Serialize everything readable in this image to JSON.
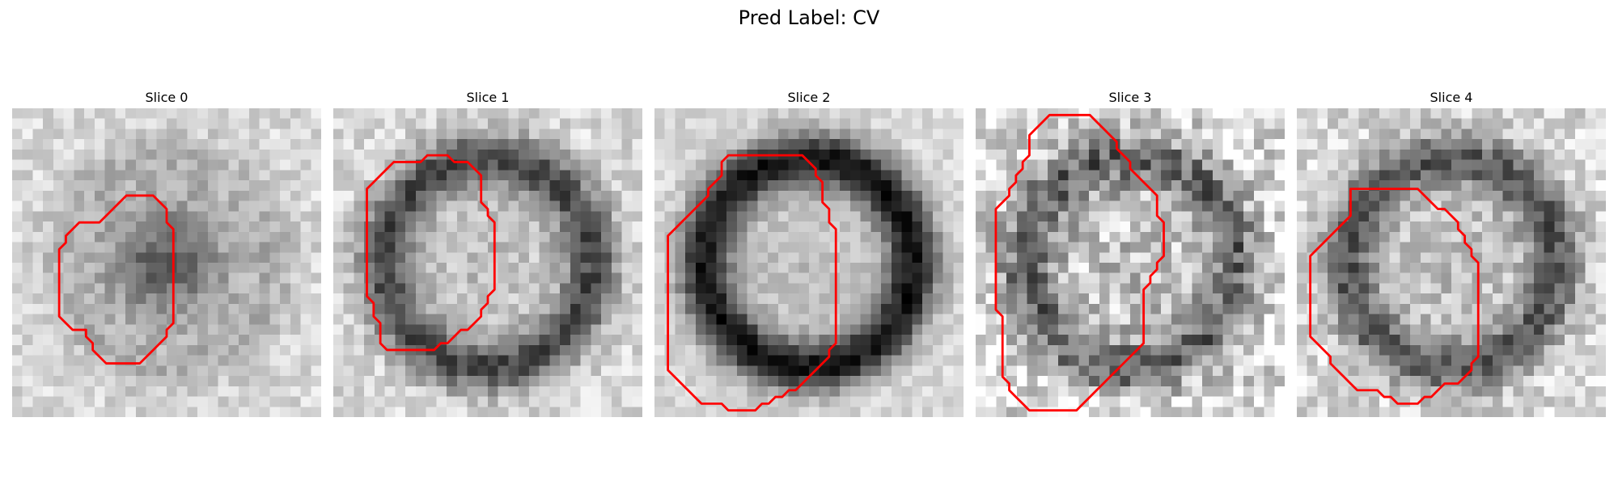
{
  "figure": {
    "title": "Pred Label: CV",
    "contour_color": "#ff0000",
    "panels": [
      {
        "title": "Slice 0",
        "ring_strength": 0.15,
        "center_dark": 0.45,
        "noise": 0.22,
        "seed": 11,
        "contour": [
          [
            19,
            13
          ],
          [
            21,
            13
          ],
          [
            23,
            15
          ],
          [
            23,
            17
          ],
          [
            24,
            18
          ],
          [
            24,
            32
          ],
          [
            23,
            33
          ],
          [
            23,
            34
          ],
          [
            22,
            35
          ],
          [
            21,
            36
          ],
          [
            20,
            37
          ],
          [
            19,
            38
          ],
          [
            14,
            38
          ],
          [
            13,
            37
          ],
          [
            12,
            36
          ],
          [
            12,
            35
          ],
          [
            11,
            34
          ],
          [
            11,
            33
          ],
          [
            9,
            33
          ],
          [
            8,
            32
          ],
          [
            7,
            31
          ],
          [
            7,
            21
          ],
          [
            8,
            20
          ],
          [
            8,
            19
          ],
          [
            9,
            18
          ],
          [
            10,
            17
          ],
          [
            13,
            17
          ],
          [
            14,
            16
          ],
          [
            15,
            15
          ],
          [
            16,
            14
          ],
          [
            17,
            13
          ]
        ]
      },
      {
        "title": "Slice 1",
        "ring_strength": 0.55,
        "center_dark": 0.0,
        "noise": 0.25,
        "seed": 23,
        "contour": [
          [
            10,
            8
          ],
          [
            13,
            8
          ],
          [
            14,
            7
          ],
          [
            17,
            7
          ],
          [
            18,
            8
          ],
          [
            20,
            8
          ],
          [
            21,
            9
          ],
          [
            22,
            10
          ],
          [
            22,
            14
          ],
          [
            23,
            15
          ],
          [
            23,
            16
          ],
          [
            24,
            17
          ],
          [
            24,
            27
          ],
          [
            23,
            28
          ],
          [
            23,
            29
          ],
          [
            22,
            30
          ],
          [
            22,
            31
          ],
          [
            21,
            32
          ],
          [
            20,
            33
          ],
          [
            19,
            33
          ],
          [
            18,
            34
          ],
          [
            17,
            35
          ],
          [
            16,
            35
          ],
          [
            15,
            36
          ],
          [
            8,
            36
          ],
          [
            7,
            35
          ],
          [
            7,
            32
          ],
          [
            6,
            31
          ],
          [
            6,
            29
          ],
          [
            5,
            28
          ],
          [
            5,
            12
          ],
          [
            6,
            11
          ],
          [
            7,
            10
          ],
          [
            8,
            9
          ],
          [
            9,
            8
          ]
        ]
      },
      {
        "title": "Slice 2",
        "ring_strength": 0.75,
        "center_dark": 0.0,
        "noise": 0.18,
        "seed": 37,
        "contour": [
          [
            11,
            7
          ],
          [
            22,
            7
          ],
          [
            23,
            8
          ],
          [
            24,
            9
          ],
          [
            24,
            10
          ],
          [
            25,
            11
          ],
          [
            25,
            14
          ],
          [
            26,
            15
          ],
          [
            26,
            17
          ],
          [
            27,
            18
          ],
          [
            27,
            35
          ],
          [
            26,
            36
          ],
          [
            26,
            37
          ],
          [
            25,
            38
          ],
          [
            24,
            39
          ],
          [
            23,
            40
          ],
          [
            22,
            41
          ],
          [
            21,
            42
          ],
          [
            20,
            42
          ],
          [
            19,
            43
          ],
          [
            18,
            43
          ],
          [
            17,
            44
          ],
          [
            16,
            44
          ],
          [
            15,
            45
          ],
          [
            11,
            45
          ],
          [
            10,
            44
          ],
          [
            7,
            44
          ],
          [
            6,
            43
          ],
          [
            5,
            42
          ],
          [
            4,
            41
          ],
          [
            3,
            40
          ],
          [
            2,
            39
          ],
          [
            2,
            19
          ],
          [
            3,
            18
          ],
          [
            4,
            17
          ],
          [
            5,
            16
          ],
          [
            6,
            15
          ],
          [
            7,
            14
          ],
          [
            8,
            13
          ],
          [
            8,
            12
          ],
          [
            9,
            11
          ],
          [
            10,
            10
          ],
          [
            10,
            8
          ]
        ]
      },
      {
        "title": "Slice 3",
        "ring_strength": 0.45,
        "center_dark": 0.0,
        "noise": 0.45,
        "seed": 51,
        "contour": [
          [
            12,
            1
          ],
          [
            17,
            1
          ],
          [
            18,
            2
          ],
          [
            19,
            3
          ],
          [
            20,
            4
          ],
          [
            21,
            5
          ],
          [
            21,
            6
          ],
          [
            22,
            7
          ],
          [
            23,
            8
          ],
          [
            23,
            9
          ],
          [
            24,
            10
          ],
          [
            25,
            11
          ],
          [
            26,
            12
          ],
          [
            27,
            13
          ],
          [
            27,
            16
          ],
          [
            28,
            17
          ],
          [
            28,
            22
          ],
          [
            27,
            23
          ],
          [
            27,
            24
          ],
          [
            26,
            25
          ],
          [
            26,
            26
          ],
          [
            25,
            27
          ],
          [
            25,
            35
          ],
          [
            24,
            36
          ],
          [
            23,
            37
          ],
          [
            22,
            38
          ],
          [
            21,
            39
          ],
          [
            20,
            40
          ],
          [
            19,
            41
          ],
          [
            18,
            42
          ],
          [
            17,
            43
          ],
          [
            16,
            44
          ],
          [
            15,
            45
          ],
          [
            8,
            45
          ],
          [
            7,
            44
          ],
          [
            6,
            43
          ],
          [
            5,
            42
          ],
          [
            5,
            41
          ],
          [
            4,
            40
          ],
          [
            4,
            31
          ],
          [
            3,
            30
          ],
          [
            3,
            15
          ],
          [
            4,
            14
          ],
          [
            5,
            13
          ],
          [
            5,
            12
          ],
          [
            6,
            11
          ],
          [
            6,
            10
          ],
          [
            7,
            9
          ],
          [
            7,
            8
          ],
          [
            8,
            7
          ],
          [
            8,
            4
          ],
          [
            9,
            3
          ],
          [
            10,
            2
          ],
          [
            11,
            1
          ]
        ]
      },
      {
        "title": "Slice 4",
        "ring_strength": 0.5,
        "center_dark": 0.0,
        "noise": 0.3,
        "seed": 67,
        "contour": [
          [
            8,
            12
          ],
          [
            18,
            12
          ],
          [
            19,
            13
          ],
          [
            20,
            14
          ],
          [
            21,
            15
          ],
          [
            22,
            15
          ],
          [
            23,
            16
          ],
          [
            24,
            17
          ],
          [
            24,
            18
          ],
          [
            25,
            19
          ],
          [
            25,
            20
          ],
          [
            26,
            21
          ],
          [
            26,
            22
          ],
          [
            27,
            23
          ],
          [
            27,
            37
          ],
          [
            26,
            38
          ],
          [
            26,
            39
          ],
          [
            25,
            40
          ],
          [
            24,
            41
          ],
          [
            22,
            41
          ],
          [
            21,
            42
          ],
          [
            20,
            43
          ],
          [
            19,
            43
          ],
          [
            18,
            44
          ],
          [
            15,
            44
          ],
          [
            14,
            43
          ],
          [
            13,
            43
          ],
          [
            12,
            42
          ],
          [
            9,
            42
          ],
          [
            8,
            41
          ],
          [
            7,
            40
          ],
          [
            6,
            39
          ],
          [
            5,
            38
          ],
          [
            5,
            37
          ],
          [
            4,
            36
          ],
          [
            3,
            35
          ],
          [
            2,
            34
          ],
          [
            2,
            22
          ],
          [
            3,
            21
          ],
          [
            4,
            20
          ],
          [
            5,
            19
          ],
          [
            6,
            18
          ],
          [
            7,
            17
          ],
          [
            8,
            16
          ],
          [
            8,
            13
          ]
        ]
      }
    ]
  }
}
